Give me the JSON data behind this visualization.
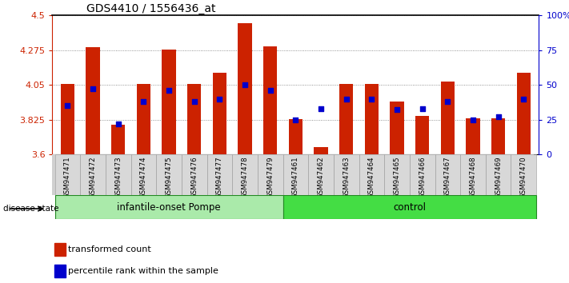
{
  "title": "GDS4410 / 1556436_at",
  "samples": [
    "GSM947471",
    "GSM947472",
    "GSM947473",
    "GSM947474",
    "GSM947475",
    "GSM947476",
    "GSM947477",
    "GSM947478",
    "GSM947479",
    "GSM947461",
    "GSM947462",
    "GSM947463",
    "GSM947464",
    "GSM947465",
    "GSM947466",
    "GSM947467",
    "GSM947468",
    "GSM947469",
    "GSM947470"
  ],
  "transformed_count": [
    4.055,
    4.295,
    3.79,
    4.055,
    4.28,
    4.055,
    4.13,
    4.45,
    4.3,
    3.83,
    3.645,
    4.055,
    4.055,
    3.94,
    3.85,
    4.07,
    3.835,
    3.835,
    4.13
  ],
  "percentile_rank": [
    35,
    47,
    22,
    38,
    46,
    38,
    40,
    50,
    46,
    25,
    33,
    40,
    40,
    32,
    33,
    38,
    25,
    27,
    40
  ],
  "groups": [
    {
      "label": "infantile-onset Pompe",
      "start": 0,
      "end": 9,
      "color": "#AAEAAA"
    },
    {
      "label": "control",
      "start": 9,
      "end": 19,
      "color": "#44DD44"
    }
  ],
  "y_min": 3.6,
  "y_max": 4.5,
  "y_ticks": [
    3.6,
    3.825,
    4.05,
    4.275,
    4.5
  ],
  "right_y_ticks": [
    0,
    25,
    50,
    75,
    100
  ],
  "bar_color": "#CC2200",
  "dot_color": "#0000CC",
  "grid_color": "#777777"
}
